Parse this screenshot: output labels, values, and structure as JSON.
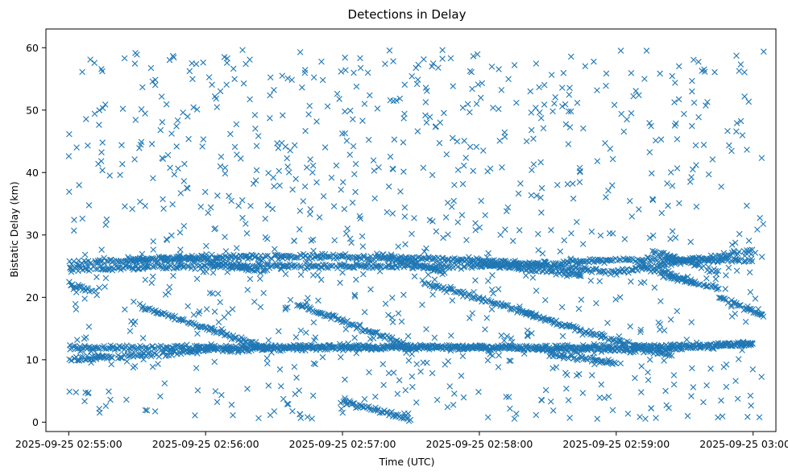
{
  "chart_data": {
    "type": "scatter",
    "title": "Detections in Delay",
    "xlabel": "Time (UTC)",
    "ylabel": "Bistatic Delay (km)",
    "marker": "x",
    "color": "#1f77b4",
    "grid": false,
    "legend": "none",
    "x_ticks": [
      "2025-09-25 02:55:00",
      "2025-09-25 02:56:00",
      "2025-09-25 02:57:00",
      "2025-09-25 02:58:00",
      "2025-09-25 02:59:00",
      "2025-09-25 03:00:00"
    ],
    "xlim": [
      "2025-09-25 02:54:50",
      "2025-09-25 03:00:10"
    ],
    "y_ticks": [
      0,
      10,
      20,
      30,
      40,
      50,
      60
    ],
    "ylim": [
      -1.5,
      63
    ],
    "series": [
      {
        "tracks": [
          {
            "x": [
              "2025-09-25 02:55:00",
              "2025-09-25 02:56:00",
              "2025-09-25 02:57:00",
              "2025-09-25 02:58:00",
              "2025-09-25 02:59:00",
              "2025-09-25 03:00:00"
            ],
            "y": [
              10,
              11.5,
              12,
              12,
              11.5,
              12.5
            ]
          },
          {
            "x": [
              "2025-09-25 02:55:00",
              "2025-09-25 02:56:00",
              "2025-09-25 02:57:00",
              "2025-09-25 02:58:00",
              "2025-09-25 02:59:00",
              "2025-09-25 03:00:00"
            ],
            "y": [
              12,
              12,
              12,
              12,
              12,
              12.5
            ]
          },
          {
            "x": [
              "2025-09-25 02:55:00",
              "2025-09-25 02:56:00",
              "2025-09-25 02:57:00",
              "2025-09-25 02:58:00",
              "2025-09-25 02:59:00",
              "2025-09-25 03:00:00"
            ],
            "y": [
              25.5,
              26.5,
              26.5,
              26,
              24,
              27.5
            ]
          },
          {
            "x": [
              "2025-09-25 02:55:00",
              "2025-09-25 02:56:00",
              "2025-09-25 02:57:00",
              "2025-09-25 02:58:00",
              "2025-09-25 02:59:00",
              "2025-09-25 03:00:00"
            ],
            "y": [
              24.5,
              25,
              25,
              25,
              26,
              26
            ]
          },
          {
            "x": [
              "2025-09-25 02:55:00",
              "2025-09-25 02:55:12"
            ],
            "y": [
              22,
              21
            ]
          },
          {
            "x": [
              "2025-09-25 02:55:25",
              "2025-09-25 02:56:00",
              "2025-09-25 02:56:27"
            ],
            "y": [
              26,
              26,
              24
            ]
          },
          {
            "x": [
              "2025-09-25 02:55:32",
              "2025-09-25 02:56:30"
            ],
            "y": [
              18.5,
              11.5
            ]
          },
          {
            "x": [
              "2025-09-25 02:56:40",
              "2025-09-25 02:57:30"
            ],
            "y": [
              19,
              12
            ]
          },
          {
            "x": [
              "2025-09-25 02:57:00",
              "2025-09-25 02:57:30"
            ],
            "y": [
              3.5,
              0.5
            ]
          },
          {
            "x": [
              "2025-09-25 02:57:15",
              "2025-09-25 02:57:45"
            ],
            "y": [
              27,
              24
            ]
          },
          {
            "x": [
              "2025-09-25 02:57:35",
              "2025-09-25 02:58:25"
            ],
            "y": [
              22.5,
              17
            ]
          },
          {
            "x": [
              "2025-09-25 02:58:00",
              "2025-09-25 02:58:45"
            ],
            "y": [
              25.5,
              23.5
            ]
          },
          {
            "x": [
              "2025-09-25 02:58:20",
              "2025-09-25 02:59:00"
            ],
            "y": [
              17.5,
              13
            ]
          },
          {
            "x": [
              "2025-09-25 02:58:30",
              "2025-09-25 02:59:00"
            ],
            "y": [
              11,
              9.5
            ]
          },
          {
            "x": [
              "2025-09-25 02:59:00",
              "2025-09-25 02:59:25"
            ],
            "y": [
              13,
              10.5
            ]
          },
          {
            "x": [
              "2025-09-25 02:59:10",
              "2025-09-25 02:59:35"
            ],
            "y": [
              25,
              22.5
            ]
          },
          {
            "x": [
              "2025-09-25 02:59:15",
              "2025-09-25 02:59:45"
            ],
            "y": [
              27.5,
              24
            ]
          },
          {
            "x": [
              "2025-09-25 02:59:20",
              "2025-09-25 02:59:45"
            ],
            "y": [
              23.5,
              21.5
            ]
          },
          {
            "x": [
              "2025-09-25 02:59:45",
              "2025-09-25 03:00:05"
            ],
            "y": [
              20,
              17
            ]
          }
        ],
        "clutter": {
          "x_range": [
            "2025-09-25 02:55:00",
            "2025-09-25 03:00:05"
          ],
          "y_range": [
            0.5,
            60
          ],
          "count": 1000
        }
      }
    ]
  }
}
